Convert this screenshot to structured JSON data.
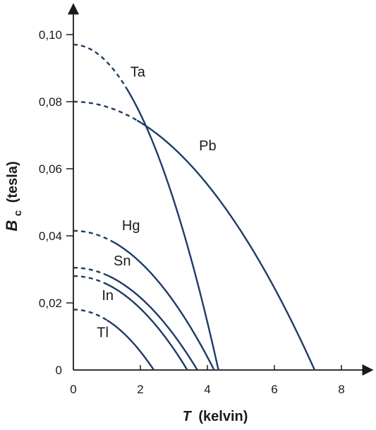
{
  "chart_data": {
    "type": "line",
    "xlabel": {
      "symbol": "T",
      "unit": "(kelvin)"
    },
    "ylabel": {
      "symbol": "B",
      "subscript": "c",
      "unit": "(tesla)"
    },
    "xlim": [
      0,
      8.8
    ],
    "ylim": [
      0,
      0.105
    ],
    "x_ticks": [
      {
        "value": 0,
        "label": "0"
      },
      {
        "value": 2,
        "label": "2"
      },
      {
        "value": 4,
        "label": "4"
      },
      {
        "value": 6,
        "label": "6"
      },
      {
        "value": 8,
        "label": "8"
      }
    ],
    "y_ticks": [
      {
        "value": 0,
        "label": "0"
      },
      {
        "value": 0.02,
        "label": "0,02"
      },
      {
        "value": 0.04,
        "label": "0,04"
      },
      {
        "value": 0.06,
        "label": "0,06"
      },
      {
        "value": 0.08,
        "label": "0,08"
      },
      {
        "value": 0.1,
        "label": "0,10"
      }
    ],
    "grid": false,
    "line_color": "#1f3b66",
    "series": [
      {
        "name": "Ta",
        "b0": 0.097,
        "tc": 4.33,
        "dashed_until_t": 1.6,
        "label_at": [
          1.7,
          0.0875
        ]
      },
      {
        "name": "Pb",
        "b0": 0.08,
        "tc": 7.2,
        "dashed_until_t": 1.9,
        "label_at": [
          3.75,
          0.0655
        ]
      },
      {
        "name": "Hg",
        "b0": 0.0415,
        "tc": 4.2,
        "dashed_until_t": 1.2,
        "label_at": [
          1.45,
          0.0417
        ]
      },
      {
        "name": "Sn",
        "b0": 0.0305,
        "tc": 3.7,
        "dashed_until_t": 1.0,
        "label_at": [
          1.2,
          0.0312
        ]
      },
      {
        "name": "In",
        "b0": 0.028,
        "tc": 3.4,
        "dashed_until_t": 1.0,
        "label_at": [
          0.85,
          0.0208
        ]
      },
      {
        "name": "Tl",
        "b0": 0.018,
        "tc": 2.4,
        "dashed_until_t": 1.0,
        "label_at": [
          0.7,
          0.0098
        ]
      }
    ]
  }
}
